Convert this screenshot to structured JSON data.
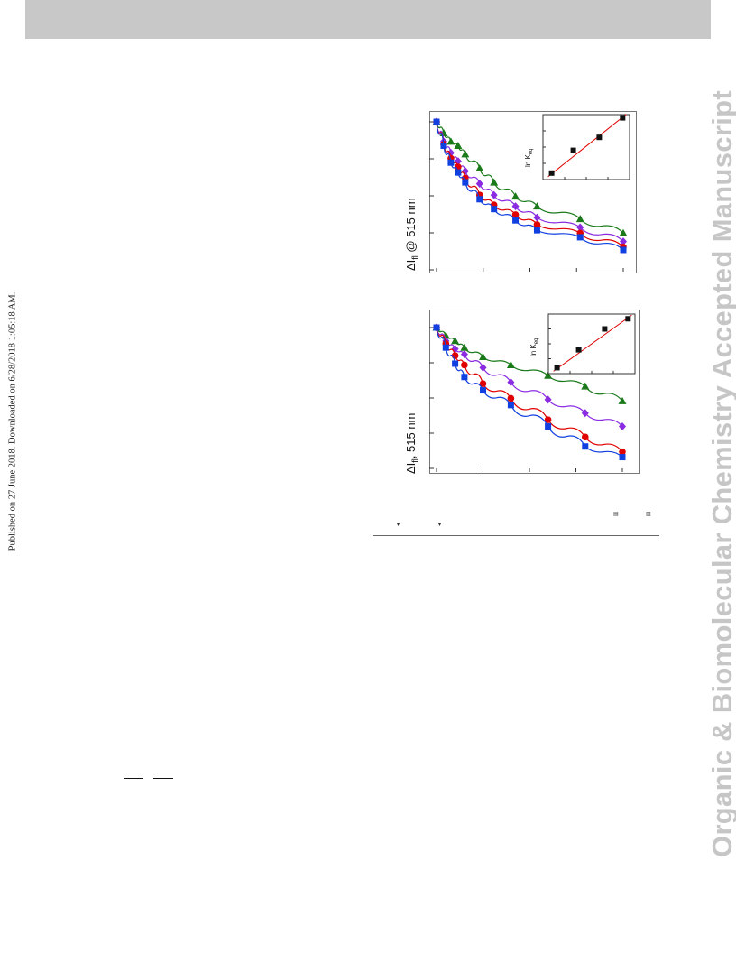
{
  "header": {
    "color": "#c8c8c8"
  },
  "watermark": {
    "text": "Organic & Biomolecular Chemistry Accepted Manuscript",
    "color": "#c6c6c6"
  },
  "side_note": {
    "text": "Published on 27 June 2018. Downloaded on 6/28/2018 1:05:18 AM."
  },
  "figures": [
    {
      "ylabel_main": "ΔI",
      "ylabel_sub": "fl",
      "ylabel_rest": " @ 515 nm",
      "inset_label_main": "ln K",
      "inset_label_sub": "eq"
    },
    {
      "ylabel_main": "ΔI",
      "ylabel_sub": "fl",
      "ylabel_rest": ", 515 nm",
      "inset_label_main": "ln K",
      "inset_label_sub": "eq"
    }
  ],
  "chart_data": [
    {
      "type": "scatter",
      "title": "",
      "xlabel": "",
      "ylabel": "ΔIfl @ 515 nm",
      "x": [
        0,
        1,
        2,
        3,
        4,
        6,
        8,
        11,
        14,
        20,
        26
      ],
      "series": [
        {
          "color": "#1a7a1a",
          "marker": "triangle",
          "values": [
            1.0,
            0.92,
            0.86,
            0.83,
            0.77,
            0.67,
            0.57,
            0.47,
            0.4,
            0.31,
            0.21
          ]
        },
        {
          "color": "#8a2be2",
          "marker": "diamond",
          "values": [
            1.0,
            0.86,
            0.78,
            0.72,
            0.65,
            0.56,
            0.48,
            0.4,
            0.32,
            0.25,
            0.15
          ]
        },
        {
          "color": "#e00000",
          "marker": "circle",
          "values": [
            1.0,
            0.84,
            0.74,
            0.68,
            0.6,
            0.48,
            0.41,
            0.34,
            0.27,
            0.21,
            0.11
          ]
        },
        {
          "color": "#1040e0",
          "marker": "square",
          "values": [
            1.0,
            0.83,
            0.71,
            0.64,
            0.57,
            0.45,
            0.38,
            0.3,
            0.23,
            0.18,
            0.09
          ]
        }
      ],
      "inset": {
        "ylabel": "ln Keq",
        "points": [
          [
            0.1,
            0.1
          ],
          [
            0.35,
            0.45
          ],
          [
            0.65,
            0.65
          ],
          [
            0.92,
            0.95
          ]
        ],
        "fit_color": "#e00000"
      }
    },
    {
      "type": "scatter",
      "title": "",
      "xlabel": "",
      "ylabel": "ΔIfl, 515 nm",
      "x": [
        0,
        1,
        2,
        3,
        5,
        8,
        12,
        16,
        20
      ],
      "series": [
        {
          "color": "#1a7a1a",
          "marker": "triangle",
          "values": [
            1.0,
            0.94,
            0.9,
            0.85,
            0.78,
            0.72,
            0.64,
            0.56,
            0.45
          ]
        },
        {
          "color": "#8a2be2",
          "marker": "diamond",
          "values": [
            1.0,
            0.9,
            0.84,
            0.8,
            0.7,
            0.59,
            0.46,
            0.36,
            0.26
          ]
        },
        {
          "color": "#e00000",
          "marker": "circle",
          "values": [
            1.0,
            0.88,
            0.79,
            0.72,
            0.58,
            0.47,
            0.31,
            0.18,
            0.07
          ]
        },
        {
          "color": "#1040e0",
          "marker": "square",
          "values": [
            1.0,
            0.85,
            0.73,
            0.63,
            0.53,
            0.42,
            0.26,
            0.11,
            0.03
          ]
        }
      ],
      "inset": {
        "ylabel": "ln Keq",
        "points": [
          [
            0.1,
            0.1
          ],
          [
            0.35,
            0.4
          ],
          [
            0.65,
            0.75
          ],
          [
            0.92,
            0.92
          ]
        ],
        "fit_color": "#e00000"
      }
    }
  ]
}
